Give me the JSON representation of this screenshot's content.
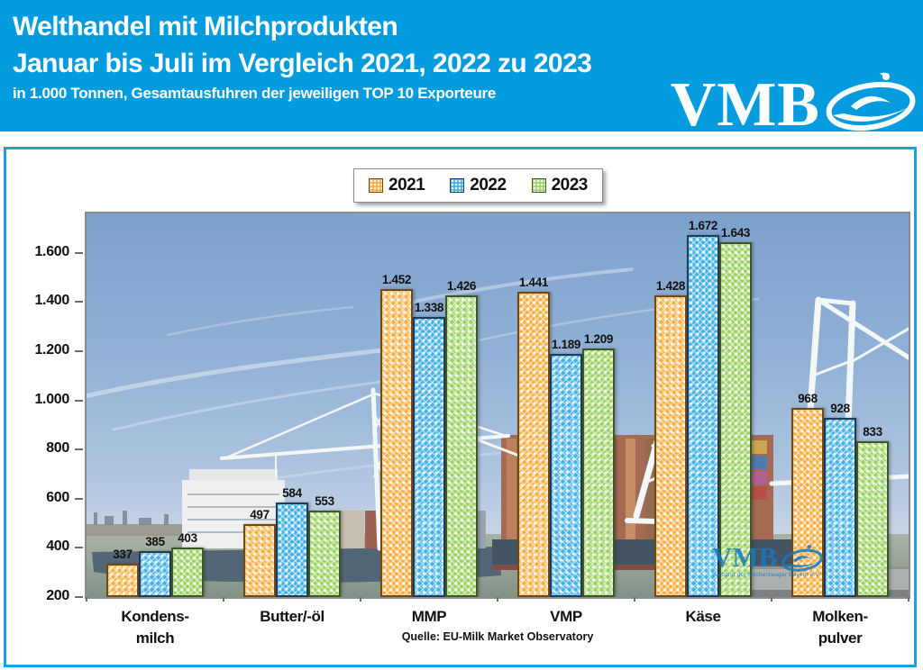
{
  "header": {
    "title_line1": "Welthandel mit Milchprodukten",
    "title_line2": "Januar bis Juli im Vergleich 2021, 2022 zu 2023",
    "subtitle": "in 1.000 Tonnen, Gesamtausfuhren der jeweiligen TOP 10 Exporteure",
    "logo_text": "VMB",
    "background_color": "#049CDF"
  },
  "chart_data": {
    "type": "bar",
    "categories": [
      "Kondensmilch",
      "Butter/-öl",
      "MMP",
      "VMP",
      "Käse",
      "Molkenpulver"
    ],
    "category_labels": [
      [
        "Kondens-",
        "milch"
      ],
      [
        "Butter/-öl"
      ],
      [
        "MMP"
      ],
      [
        "VMP"
      ],
      [
        "Käse"
      ],
      [
        "Molken-",
        "pulver"
      ]
    ],
    "series": [
      {
        "name": "2021",
        "color": "#F7AE43",
        "values": [
          337,
          497,
          1452,
          1441,
          1428,
          968
        ],
        "labels": [
          "337",
          "497",
          "1.452",
          "1.441",
          "1.428",
          "968"
        ]
      },
      {
        "name": "2022",
        "color": "#41B0E7",
        "values": [
          385,
          584,
          1338,
          1189,
          1672,
          928
        ],
        "labels": [
          "385",
          "584",
          "1.338",
          "1.189",
          "1.672",
          "928"
        ]
      },
      {
        "name": "2023",
        "color": "#9AD261",
        "values": [
          403,
          553,
          1426,
          1209,
          1643,
          833
        ],
        "labels": [
          "403",
          "553",
          "1.426",
          "1.209",
          "1.643",
          "833"
        ]
      }
    ],
    "ylabel": "",
    "xlabel": "",
    "y_axis": {
      "min": 200,
      "scale_max": 1760,
      "tick_step": 200,
      "tick_labels": [
        "200",
        "400",
        "600",
        "800",
        "1.000",
        "1.200",
        "1.400",
        "1.600"
      ]
    },
    "grid": false,
    "legend_position": "top-center",
    "source_note": "Quelle: EU-Milk Market Observatory",
    "watermark": {
      "text": "VMB",
      "subtext": "Verband der Milcherzeuger Bayern e.V."
    }
  }
}
